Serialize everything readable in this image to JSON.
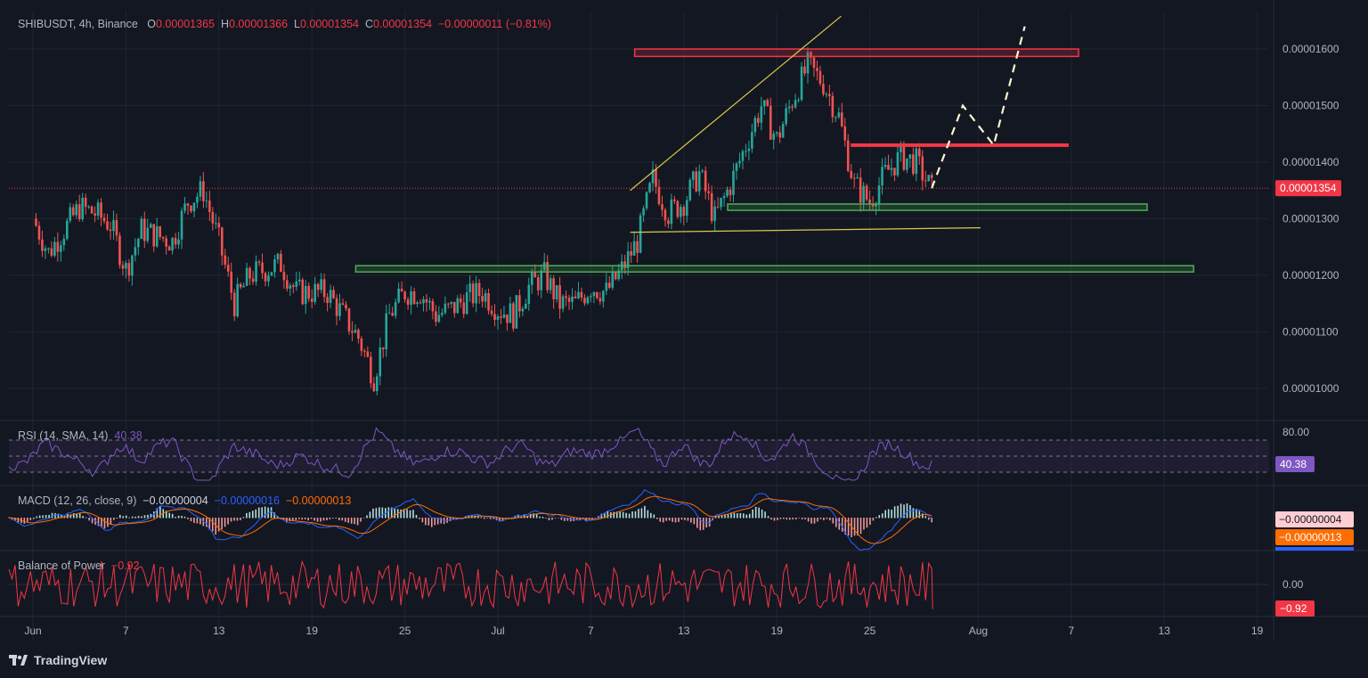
{
  "header": {
    "symbol": "SHIBUSDT, 4h, Binance",
    "o_label": "O",
    "o_value": "0.00001365",
    "h_label": "H",
    "h_value": "0.00001366",
    "l_label": "L",
    "l_value": "0.00001354",
    "c_label": "C",
    "c_value": "0.00001354",
    "change": "−0.00000011 (−0.81%)"
  },
  "chart_data": {
    "type": "candlestick",
    "title": "SHIBUSDT, 4h, Binance",
    "y_ticks": [
      "0.00001600",
      "0.00001500",
      "0.00001400",
      "0.00001300",
      "0.00001200",
      "0.00001100",
      "0.00001000"
    ],
    "y_tick_values": [
      1.6e-05,
      1.5e-05,
      1.4e-05,
      1.3e-05,
      1.2e-05,
      1.1e-05,
      1e-05
    ],
    "x_ticks": [
      "Jun",
      "7",
      "13",
      "19",
      "25",
      "Jul",
      "7",
      "13",
      "19",
      "25",
      "Aug",
      "7",
      "13",
      "19"
    ],
    "last_price": "0.00001354",
    "price_path": [
      {
        "date": "Jun 1",
        "price": 1.3e-05
      },
      {
        "date": "Jun 2",
        "price": 1.24e-05
      },
      {
        "date": "Jun 3",
        "price": 1.28e-05
      },
      {
        "date": "Jun 4",
        "price": 1.32e-05
      },
      {
        "date": "Jun 5",
        "price": 1.31e-05
      },
      {
        "date": "Jun 6",
        "price": 1.29e-05
      },
      {
        "date": "Jun 7",
        "price": 1.21e-05
      },
      {
        "date": "Jun 8",
        "price": 1.28e-05
      },
      {
        "date": "Jun 10",
        "price": 1.26e-05
      },
      {
        "date": "Jun 11",
        "price": 1.33e-05
      },
      {
        "date": "Jun 12",
        "price": 1.35e-05
      },
      {
        "date": "Jun 13",
        "price": 1.26e-05
      },
      {
        "date": "Jun 14",
        "price": 1.15e-05
      },
      {
        "date": "Jun 15",
        "price": 1.2e-05
      },
      {
        "date": "Jun 17",
        "price": 1.22e-05
      },
      {
        "date": "Jun 18",
        "price": 1.17e-05
      },
      {
        "date": "Jun 20",
        "price": 1.17e-05
      },
      {
        "date": "Jun 21",
        "price": 1.13e-05
      },
      {
        "date": "Jun 22",
        "price": 1.09e-05
      },
      {
        "date": "Jun 23",
        "price": 1.02e-05
      },
      {
        "date": "Jun 24",
        "price": 1.13e-05
      },
      {
        "date": "Jun 25",
        "price": 1.17e-05
      },
      {
        "date": "Jun 26",
        "price": 1.17e-05
      },
      {
        "date": "Jun 27",
        "price": 1.13e-05
      },
      {
        "date": "Jun 28",
        "price": 1.14e-05
      },
      {
        "date": "Jun 29",
        "price": 1.16e-05
      },
      {
        "date": "Jun 30",
        "price": 1.17e-05
      },
      {
        "date": "Jul 1",
        "price": 1.14e-05
      },
      {
        "date": "Jul 2",
        "price": 1.13e-05
      },
      {
        "date": "Jul 3",
        "price": 1.18e-05
      },
      {
        "date": "Jul 4",
        "price": 1.2e-05
      },
      {
        "date": "Jul 5",
        "price": 1.15e-05
      },
      {
        "date": "Jul 6",
        "price": 1.15e-05
      },
      {
        "date": "Jul 7",
        "price": 1.18e-05
      },
      {
        "date": "Jul 8",
        "price": 1.17e-05
      },
      {
        "date": "Jul 9",
        "price": 1.21e-05
      },
      {
        "date": "Jul 10",
        "price": 1.26e-05
      },
      {
        "date": "Jul 11",
        "price": 1.37e-05
      },
      {
        "date": "Jul 12",
        "price": 1.31e-05
      },
      {
        "date": "Jul 13",
        "price": 1.33e-05
      },
      {
        "date": "Jul 14",
        "price": 1.38e-05
      },
      {
        "date": "Jul 15",
        "price": 1.3e-05
      },
      {
        "date": "Jul 16",
        "price": 1.36e-05
      },
      {
        "date": "Jul 17",
        "price": 1.43e-05
      },
      {
        "date": "Jul 18",
        "price": 1.5e-05
      },
      {
        "date": "Jul 19",
        "price": 1.44e-05
      },
      {
        "date": "Jul 20",
        "price": 1.51e-05
      },
      {
        "date": "Jul 21",
        "price": 1.57e-05
      },
      {
        "date": "Jul 22",
        "price": 1.54e-05
      },
      {
        "date": "Jul 23",
        "price": 1.48e-05
      },
      {
        "date": "Jul 24",
        "price": 1.36e-05
      },
      {
        "date": "Jul 25",
        "price": 1.33e-05
      },
      {
        "date": "Jul 26",
        "price": 1.38e-05
      },
      {
        "date": "Jul 27",
        "price": 1.41e-05
      },
      {
        "date": "Jul 28",
        "price": 1.4e-05
      },
      {
        "date": "Jul 29",
        "price": 1.35e-05
      }
    ],
    "annotations": {
      "resistance_zones": [
        {
          "from": "Jul 10",
          "to": "Aug 5",
          "price_low": 1.59e-05,
          "price_high": 1.6e-05,
          "color": "#f23645"
        },
        {
          "from": "Jul 24",
          "to": "Aug 5",
          "price": 1.43e-05,
          "color": "#f23645"
        }
      ],
      "support_zones": [
        {
          "from": "Jul 16",
          "to": "Aug 10",
          "price_low": 1.318e-05,
          "price_high": 1.326e-05,
          "color": "#4caf50"
        },
        {
          "from": "Jun 22",
          "to": "Aug 13",
          "price_low": 1.209e-05,
          "price_high": 1.217e-05,
          "color": "#4caf50"
        }
      ],
      "trendlines": [
        {
          "from": "Jul 10",
          "to": "Jul 22",
          "price_from": 1.35e-05,
          "price_to": 1.658e-05,
          "color": "#d9c94a"
        },
        {
          "from": "Jul 10",
          "to": "Jul 31",
          "price_from": 1.276e-05,
          "price_to": 1.284e-05,
          "color": "#d9c94a"
        }
      ],
      "projection": [
        {
          "date": "Jul 29",
          "price": 1.354e-05
        },
        {
          "date": "Jul 31",
          "price": 1.5e-05
        },
        {
          "date": "Aug 2",
          "price": 1.43e-05
        },
        {
          "date": "Aug 4",
          "price": 1.64e-05
        }
      ]
    }
  },
  "price_scale": {
    "last_price": "0.00001354",
    "last_color": "#f23645"
  },
  "rsi": {
    "label": "RSI (14, SMA, 14)",
    "value": "40.38",
    "upper_label": "80.00",
    "badge": "40.38",
    "color": "#7e57c2"
  },
  "macd": {
    "label": "MACD (12, 26, close, 9)",
    "hist": "−0.00000004",
    "macd": "−0.00000016",
    "signal": "−0.00000013",
    "badge_hist": "−0.00000004",
    "badge_signal": "−0.00000013",
    "macd_color": "#2962ff",
    "signal_color": "#ff6d00"
  },
  "bop": {
    "label": "Balance of Power",
    "value": "−0.92",
    "zero_label": "0.00",
    "badge": "−0.92",
    "color": "#f23645"
  },
  "footer": {
    "brand": "TradingView"
  },
  "colors": {
    "up": "#26a69a",
    "down": "#ef5350",
    "bg": "#131722",
    "grid": "#1f2430"
  }
}
